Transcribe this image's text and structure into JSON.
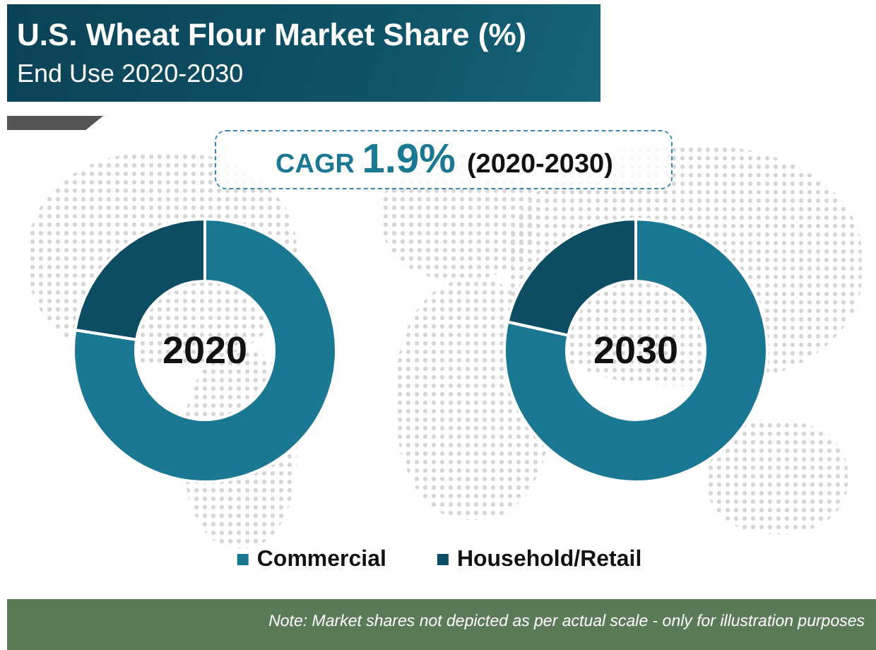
{
  "chart_data": {
    "type": "donut",
    "title": "U.S. Wheat Flour Market Share (%)",
    "subtitle": "End Use 2020-2030",
    "categories": [
      "Commercial",
      "Household/Retail"
    ],
    "colors": [
      "#1b7892",
      "#0d4d63"
    ],
    "series": [
      {
        "name": "2020",
        "values": [
          77.5,
          22.5
        ]
      },
      {
        "name": "2030",
        "values": [
          78.5,
          21.5
        ]
      }
    ],
    "legend": "bottom",
    "annotations": [
      "CAGR 1.9% (2020-2030)",
      "Note: Market shares not depicted as per actual scale - only for illustration purposes"
    ]
  }
}
